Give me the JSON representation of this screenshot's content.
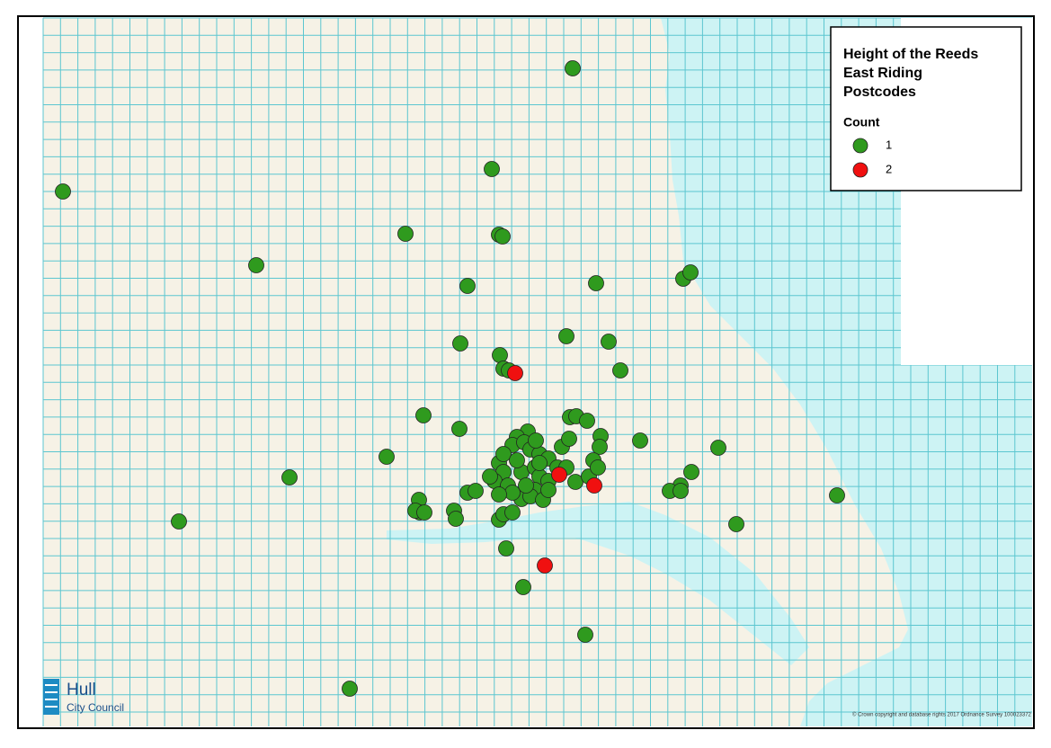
{
  "legend": {
    "title": "Height of the Reeds\nEast Riding\nPostcodes",
    "field": "Count",
    "items": [
      {
        "label": "1",
        "color": "#2f9a1e"
      },
      {
        "label": "2",
        "color": "#f01010"
      }
    ]
  },
  "markers": [
    1,
    1,
    1,
    1,
    1,
    1,
    1,
    1,
    1,
    1,
    1,
    1,
    1,
    1,
    1,
    1,
    1,
    1,
    1,
    1,
    1,
    1,
    1,
    1,
    1,
    1,
    1,
    1,
    1,
    1,
    1,
    1,
    1,
    1,
    1,
    1,
    1,
    1,
    1,
    1,
    1,
    1,
    1,
    1,
    1,
    1,
    1,
    1,
    1,
    1,
    1,
    1,
    1,
    1,
    1,
    1,
    1,
    1,
    1,
    1,
    1,
    1,
    1,
    1,
    1,
    1,
    1,
    1,
    1,
    1,
    1,
    1,
    1,
    1,
    1,
    1,
    1,
    1,
    1,
    1,
    1,
    1,
    1,
    1,
    1,
    1,
    1,
    2,
    2,
    2,
    2
  ],
  "logo": {
    "name": "Hull",
    "subtitle": "City Council"
  },
  "copyright": "© Crown copyright and database rights 2017 Ordnance Survey 100023372"
}
